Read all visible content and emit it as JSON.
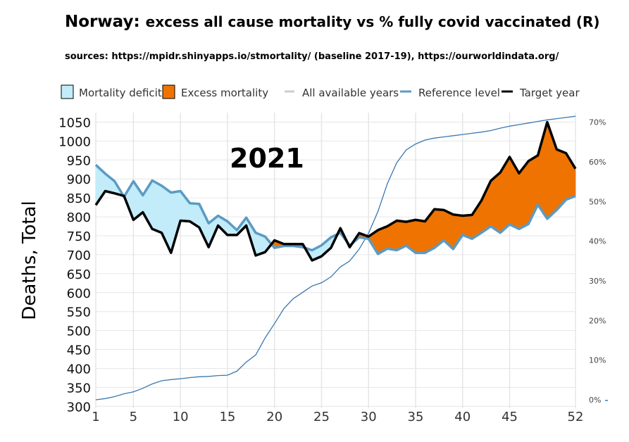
{
  "header": {
    "title_country": "Norway:",
    "title_rest": "excess all cause mortality vs % fully covid vaccinated (R)",
    "sources": "sources:  https://mpidr.shinyapps.io/stmortality/ (baseline 2017-19), https://ourworldindata.org/"
  },
  "legend": {
    "deficit": "Mortality deficit",
    "excess": "Excess mortality",
    "all_years": "All available years",
    "reference": "Reference level",
    "target": "Target year"
  },
  "colors": {
    "deficit_fill": "#c2ecf9",
    "excess_fill": "#ef7300",
    "reference_line": "#5b9bc4",
    "target_line": "#000000",
    "vaccination_line": "#3a78b0",
    "grid": "#e6e6e6"
  },
  "annotation": {
    "year": "2021"
  },
  "chart_data": {
    "type": "line",
    "title": "Norway: excess all cause mortality vs % fully covid vaccinated (R)",
    "ylabel": "Deaths, Total",
    "xlabel": "",
    "xlim": [
      1,
      52
    ],
    "ylim": [
      295,
      1075
    ],
    "y2lim": [
      0,
      71
    ],
    "x_ticks": [
      "1",
      "5",
      "10",
      "15",
      "20",
      "25",
      "30",
      "35",
      "40",
      "45",
      "52"
    ],
    "y_ticks": [
      "300",
      "350",
      "400",
      "450",
      "500",
      "550",
      "600",
      "650",
      "700",
      "750",
      "800",
      "850",
      "900",
      "950",
      "1000",
      "1050"
    ],
    "y2_ticks": [
      "0%",
      "10%",
      "20%",
      "30%",
      "40%",
      "50%",
      "60%",
      "70%"
    ],
    "grid": true,
    "legend_position": "top",
    "weeks": [
      1,
      2,
      3,
      4,
      5,
      6,
      7,
      8,
      9,
      10,
      11,
      12,
      13,
      14,
      15,
      16,
      17,
      18,
      19,
      20,
      21,
      22,
      23,
      24,
      25,
      26,
      27,
      28,
      29,
      30,
      31,
      32,
      33,
      34,
      35,
      36,
      37,
      38,
      39,
      40,
      41,
      42,
      43,
      44,
      45,
      46,
      47,
      48,
      49,
      50,
      51,
      52
    ],
    "series": [
      {
        "name": "Reference level",
        "values": [
          937,
          914,
          894,
          853,
          894,
          857,
          896,
          882,
          864,
          868,
          836,
          834,
          783,
          803,
          788,
          765,
          798,
          758,
          748,
          718,
          723,
          723,
          720,
          712,
          725,
          746,
          758,
          724,
          746,
          742,
          702,
          716,
          712,
          724,
          705,
          705,
          718,
          738,
          715,
          752,
          742,
          758,
          775,
          758,
          780,
          768,
          781,
          832,
          795,
          818,
          845,
          855
        ]
      },
      {
        "name": "Target year",
        "values": [
          831,
          868,
          862,
          855,
          792,
          812,
          768,
          758,
          705,
          790,
          788,
          772,
          720,
          777,
          752,
          752,
          777,
          698,
          707,
          738,
          728,
          728,
          728,
          685,
          696,
          718,
          770,
          720,
          757,
          748,
          765,
          775,
          790,
          787,
          792,
          788,
          820,
          818,
          806,
          803,
          805,
          843,
          895,
          917,
          958,
          915,
          947,
          962,
          1050,
          978,
          968,
          927
        ]
      },
      {
        "name": "% fully vaccinated",
        "axis": "right",
        "values": [
          0.0,
          0.3,
          0.8,
          1.5,
          2.0,
          2.9,
          4.0,
          4.8,
          5.1,
          5.3,
          5.6,
          5.8,
          5.9,
          6.1,
          6.2,
          7.2,
          9.5,
          11.3,
          15.6,
          19.2,
          23.0,
          25.5,
          27.1,
          28.7,
          29.5,
          31.0,
          33.5,
          35.0,
          38.0,
          42.0,
          47.5,
          54.5,
          59.8,
          63.0,
          64.5,
          65.5,
          66.0,
          66.3,
          66.6,
          66.9,
          67.2,
          67.5,
          67.9,
          68.5,
          69.0,
          69.4,
          69.8,
          70.2,
          70.6,
          70.9,
          71.2,
          71.5
        ]
      }
    ]
  }
}
